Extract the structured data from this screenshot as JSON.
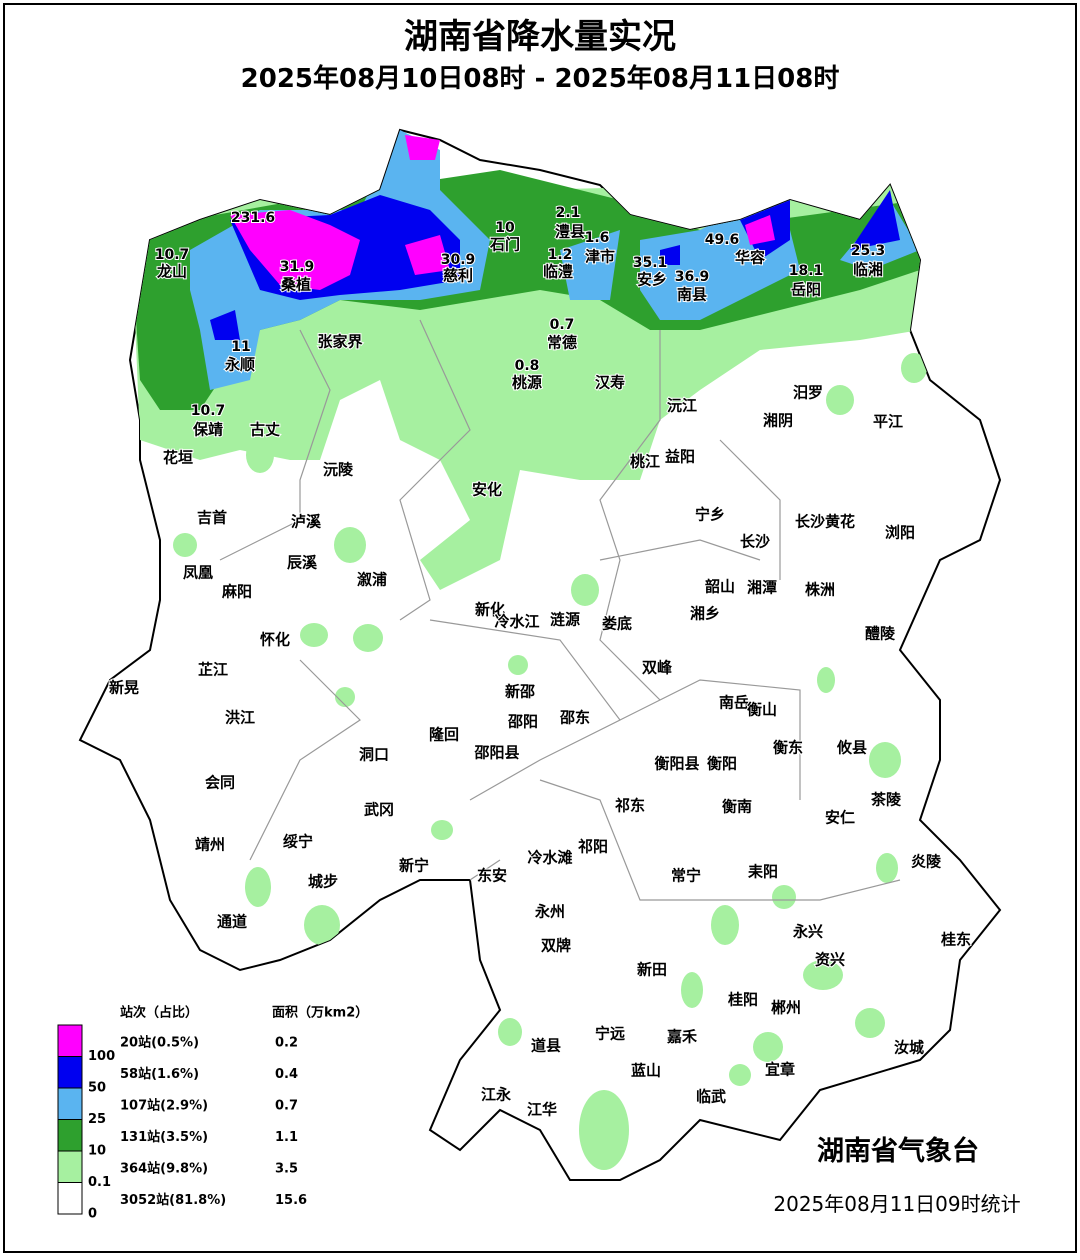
{
  "header": {
    "title": "湖南省降水量实况",
    "subtitle": "2025年08月10日08时 - 2025年08月11日08时"
  },
  "places": [
    "龙山",
    "桑植",
    "慈利",
    "石门",
    "澧县",
    "津市",
    "临澧",
    "安乡",
    "南县",
    "华容",
    "岳阳",
    "临湘",
    "永顺",
    "张家界",
    "常德",
    "桃源",
    "汉寿",
    "保靖",
    "古丈",
    "花垣",
    "沅江",
    "湘阴",
    "汨罗",
    "平江",
    "沅陵",
    "桃江",
    "益阳",
    "安化",
    "吉首",
    "泸溪",
    "宁乡",
    "长沙",
    "长沙黄花",
    "浏阳",
    "辰溪",
    "溆浦",
    "凤凰",
    "麻阳",
    "韶山",
    "湘潭",
    "株洲",
    "新化",
    "冷水江",
    "涟源",
    "娄底",
    "湘乡",
    "怀化",
    "醴陵",
    "芷江",
    "双峰",
    "新晃",
    "新邵",
    "南岳",
    "衡山",
    "洪江",
    "邵阳",
    "邵东",
    "隆回",
    "洞口",
    "邵阳县",
    "衡阳县",
    "衡阳",
    "衡东",
    "攸县",
    "会同",
    "祁东",
    "衡南",
    "武冈",
    "茶陵",
    "安仁",
    "靖州",
    "绥宁",
    "冷水滩",
    "祁阳",
    "炎陵",
    "新宁",
    "常宁",
    "耒阳",
    "东安",
    "城步",
    "通道",
    "永州",
    "永兴",
    "桂东",
    "双牌",
    "资兴",
    "新田",
    "桂阳",
    "郴州",
    "宁远",
    "嘉禾",
    "道县",
    "汝城",
    "蓝山",
    "宜章",
    "江永",
    "临武",
    "江华"
  ],
  "readings": [
    "231.6",
    "10.7",
    "31.9",
    "30.9",
    "10",
    "2.1",
    "1.6",
    "1.2",
    "35.1",
    "36.9",
    "49.6",
    "18.1",
    "25.3",
    "11",
    "0.7",
    "0.8",
    "10.7"
  ],
  "legend": {
    "header_count": "站次（占比）",
    "header_area": "面积（万km2）",
    "thresholds": [
      "100",
      "50",
      "25",
      "10",
      "0.1",
      "0"
    ],
    "rows": [
      {
        "count": "20站(0.5%)",
        "area": "0.2",
        "color": "#ff00ff"
      },
      {
        "count": "58站(1.6%)",
        "area": "0.4",
        "color": "#0000f0"
      },
      {
        "count": "107站(2.9%)",
        "area": "0.7",
        "color": "#5ab4f0"
      },
      {
        "count": "131站(3.5%)",
        "area": "1.1",
        "color": "#2ea02e"
      },
      {
        "count": "364站(9.8%)",
        "area": "3.5",
        "color": "#a6f0a0"
      },
      {
        "count": "3052站(81.8%)",
        "area": "15.6",
        "color": "#ffffff"
      }
    ]
  },
  "footer": {
    "agency": "湖南省气象台",
    "stamp": "2025年08月11日09时统计"
  }
}
